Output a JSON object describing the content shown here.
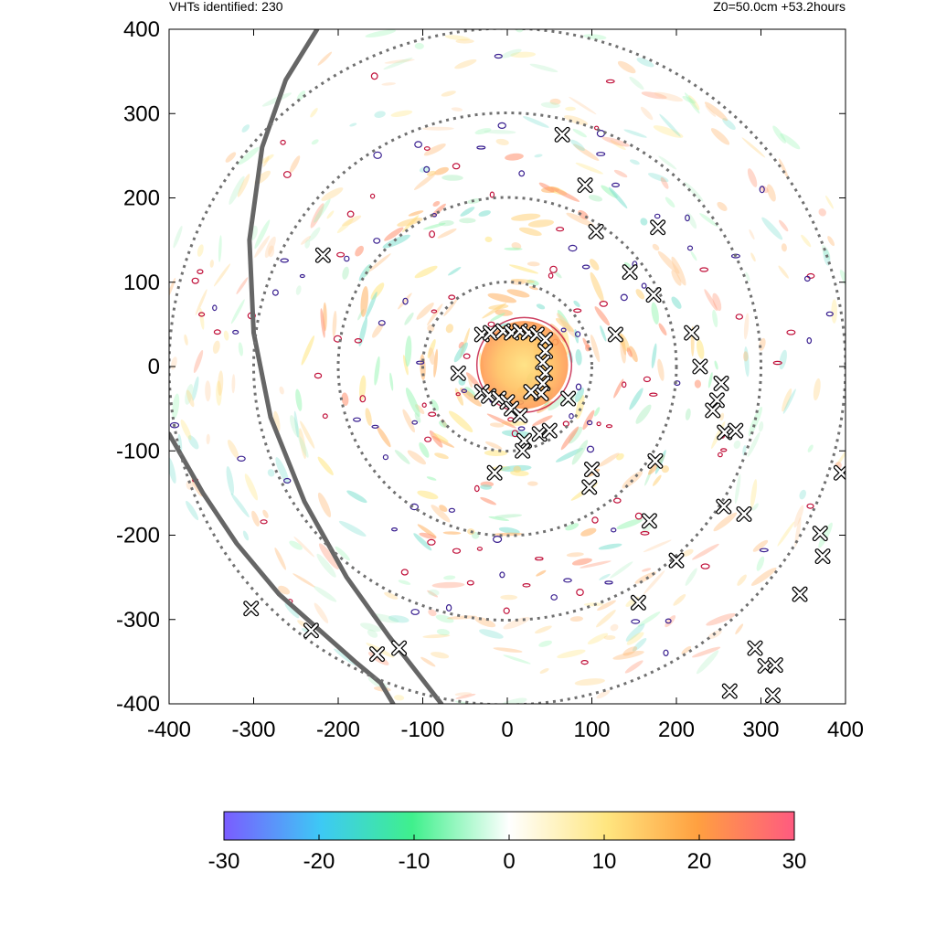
{
  "header": {
    "vht_label": "VHTs identified: 230",
    "run_info": "Z0=50.0cm  +53.2hours"
  },
  "chart_data": {
    "type": "heatmap",
    "title": "",
    "xlabel": "",
    "ylabel": "",
    "xlim": [
      -400,
      400
    ],
    "ylim": [
      -400,
      400
    ],
    "x_ticks": [
      "-400",
      "-300",
      "-200",
      "-100",
      "0",
      "100",
      "200",
      "300",
      "400"
    ],
    "y_ticks": [
      "400",
      "300",
      "200",
      "100",
      "0",
      "-100",
      "-200",
      "-300",
      "-400"
    ],
    "range_rings_radius": [
      100,
      200,
      300,
      400
    ],
    "colorbar": {
      "range": [
        -30,
        30
      ],
      "ticks": [
        "-30",
        "-20",
        "-10",
        "0",
        "10",
        "20",
        "30"
      ],
      "colors": [
        "#7a5cff",
        "#3dc9f5",
        "#3ff08c",
        "#ffffff",
        "#ffe680",
        "#ffa040",
        "#ff5a80"
      ]
    },
    "coastlines": [
      [
        [
          -225,
          400
        ],
        [
          -262,
          340
        ],
        [
          -290,
          260
        ],
        [
          -305,
          150
        ],
        [
          -300,
          40
        ],
        [
          -280,
          -60
        ],
        [
          -240,
          -160
        ],
        [
          -190,
          -250
        ],
        [
          -140,
          -320
        ],
        [
          -78,
          -400
        ]
      ],
      [
        [
          -400,
          -80
        ],
        [
          -360,
          -150
        ],
        [
          -320,
          -210
        ],
        [
          -270,
          -270
        ],
        [
          -225,
          -310
        ],
        [
          -180,
          -350
        ],
        [
          -150,
          -375
        ],
        [
          -135,
          -400
        ]
      ]
    ],
    "vht_markers": [
      [
        65,
        275
      ],
      [
        92,
        215
      ],
      [
        105,
        160
      ],
      [
        178,
        165
      ],
      [
        145,
        112
      ],
      [
        173,
        85
      ],
      [
        128,
        38
      ],
      [
        218,
        40
      ],
      [
        228,
        0
      ],
      [
        253,
        -20
      ],
      [
        248,
        -40
      ],
      [
        243,
        -52
      ],
      [
        257,
        -78
      ],
      [
        270,
        -76
      ],
      [
        -218,
        132
      ],
      [
        -58,
        -8
      ],
      [
        -30,
        38
      ],
      [
        -20,
        40
      ],
      [
        -5,
        42
      ],
      [
        5,
        40
      ],
      [
        15,
        42
      ],
      [
        25,
        40
      ],
      [
        35,
        38
      ],
      [
        45,
        32
      ],
      [
        45,
        18
      ],
      [
        42,
        5
      ],
      [
        45,
        -8
      ],
      [
        42,
        -20
      ],
      [
        40,
        -32
      ],
      [
        28,
        -30
      ],
      [
        -30,
        -30
      ],
      [
        -22,
        -35
      ],
      [
        -10,
        -38
      ],
      [
        0,
        -42
      ],
      [
        5,
        -50
      ],
      [
        15,
        -58
      ],
      [
        20,
        -88
      ],
      [
        18,
        -100
      ],
      [
        38,
        -80
      ],
      [
        50,
        -76
      ],
      [
        72,
        -38
      ],
      [
        100,
        -122
      ],
      [
        97,
        -143
      ],
      [
        -15,
        -126
      ],
      [
        168,
        -183
      ],
      [
        175,
        -112
      ],
      [
        256,
        -166
      ],
      [
        280,
        -175
      ],
      [
        200,
        -230
      ],
      [
        155,
        -280
      ],
      [
        370,
        -198
      ],
      [
        373,
        -225
      ],
      [
        346,
        -270
      ],
      [
        395,
        -126
      ],
      [
        -303,
        -287
      ],
      [
        -232,
        -313
      ],
      [
        -154,
        -341
      ],
      [
        -128,
        -334
      ],
      [
        293,
        -334
      ],
      [
        305,
        -355
      ],
      [
        317,
        -354
      ],
      [
        314,
        -390
      ],
      [
        263,
        -385
      ]
    ]
  }
}
